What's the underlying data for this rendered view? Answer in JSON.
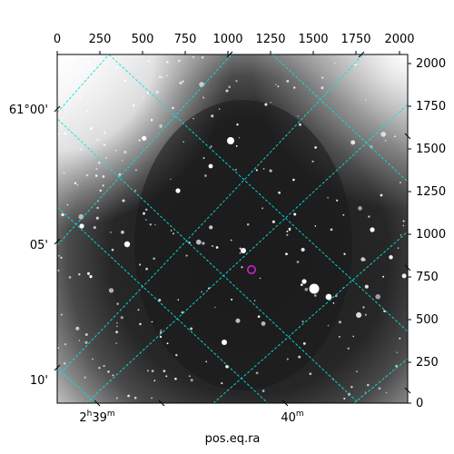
{
  "figure": {
    "xlabel": "pos.eq.ra",
    "colors": {
      "grid": "#00e5e5",
      "marker": "#d21fd2",
      "frame": "#000000",
      "background": "#ffffff"
    }
  },
  "pixel_axes": {
    "x_ticks": [
      "0",
      "250",
      "500",
      "750",
      "1000",
      "1250",
      "1500",
      "1750",
      "2000"
    ],
    "y_ticks": [
      "0",
      "250",
      "500",
      "750",
      "1000",
      "1250",
      "1500",
      "1750",
      "2000"
    ]
  },
  "world_axes": {
    "dec_labels": [
      "61°00'",
      "05'",
      "10'"
    ],
    "ra_labels": [
      {
        "main": "2",
        "sup1": "h",
        "rest": "39",
        "sup2": "m"
      },
      {
        "main": "40",
        "sup1": "m",
        "rest": "",
        "sup2": ""
      }
    ]
  },
  "image": {
    "type": "grayscale astronomical image",
    "marked_source": "magenta circle"
  }
}
